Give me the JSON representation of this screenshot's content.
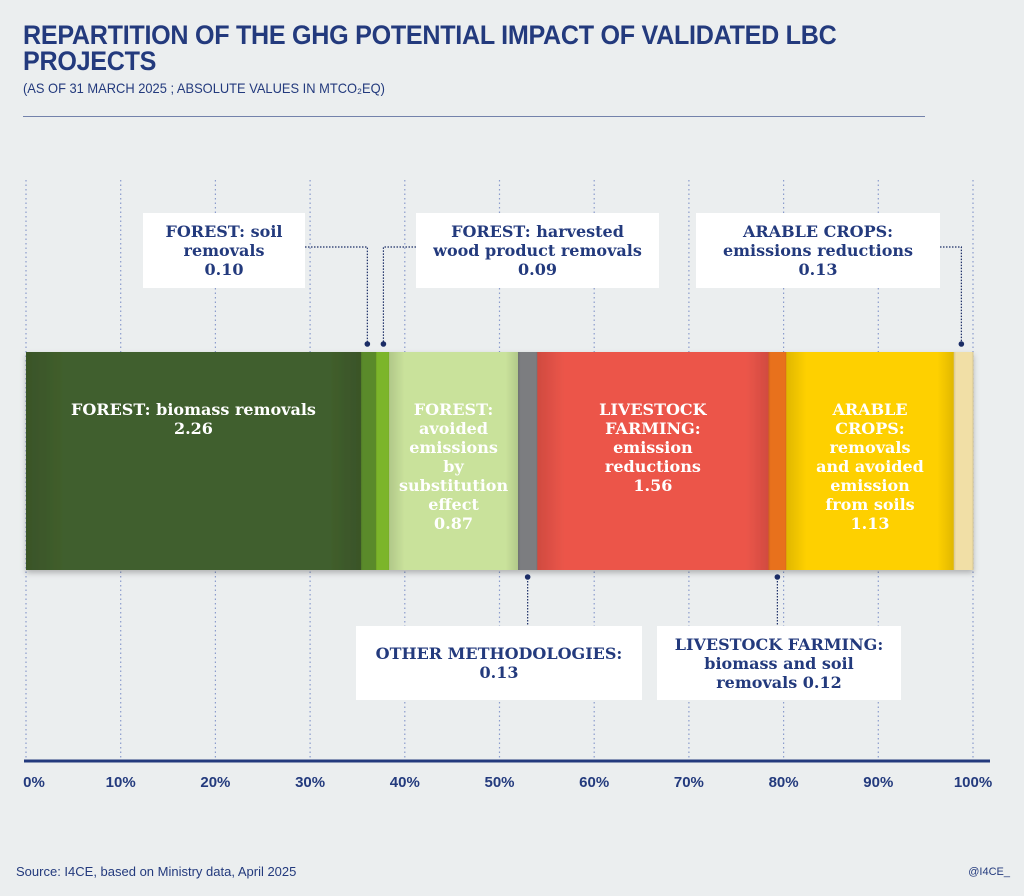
{
  "header": {
    "title": "REPARTITION OF THE GHG POTENTIAL IMPACT OF VALIDATED LBC PROJECTS",
    "subtitle": "(AS OF 31 MARCH 2025 ; ABSOLUTE VALUES IN MTCO₂EQ)"
  },
  "footer": {
    "source": "Source: I4CE, based on Ministry data, April 2025",
    "handle": "@I4CE_"
  },
  "chart_data": {
    "type": "bar",
    "orientation": "horizontal-stacked-100",
    "title": "REPARTITION OF THE GHG POTENTIAL IMPACT OF VALIDATED LBC PROJECTS",
    "subtitle": "(AS OF 31 MARCH 2025 ; ABSOLUTE VALUES IN MTCO₂EQ)",
    "unit": "MtCO2eq",
    "xlim": [
      0,
      100
    ],
    "x_ticks": [
      "0%",
      "10%",
      "20%",
      "30%",
      "40%",
      "50%",
      "60%",
      "70%",
      "80%",
      "90%",
      "100%"
    ],
    "grid": "vertical dotted",
    "segments": [
      {
        "name": "FOREST: biomass removals",
        "value": 2.26,
        "color": "#415f2d",
        "label_lines": [
          "FOREST: biomass removals",
          "2.26"
        ],
        "label_position": "inside"
      },
      {
        "name": "FOREST: soil removals",
        "value": 0.1,
        "color": "#5a8a2c",
        "label_lines": [
          "FOREST: soil",
          "removals",
          "0.10"
        ],
        "label_position": "callout-top"
      },
      {
        "name": "FOREST: harvested wood product removals",
        "value": 0.09,
        "color": "#7cb52a",
        "label_lines": [
          "FOREST: harvested",
          "wood product removals",
          "0.09"
        ],
        "label_position": "callout-top"
      },
      {
        "name": "FOREST: avoided emissions by substitution effect",
        "value": 0.87,
        "color": "#c9e29b",
        "label_lines": [
          "FOREST:",
          "avoided",
          "emissions",
          "by",
          "substitution",
          "effect",
          "0.87"
        ],
        "label_position": "inside"
      },
      {
        "name": "OTHER METHODOLOGIES",
        "value": 0.13,
        "color": "#7b7d80",
        "label_lines": [
          "OTHER METHODOLOGIES:",
          "0.13"
        ],
        "label_position": "callout-bottom"
      },
      {
        "name": "LIVESTOCK FARMING: emission reductions",
        "value": 1.56,
        "color": "#ec5549",
        "label_lines": [
          "LIVESTOCK",
          "FARMING:",
          "emission",
          "reductions",
          "1.56"
        ],
        "label_position": "inside"
      },
      {
        "name": "LIVESTOCK FARMING: biomass and soil removals",
        "value": 0.12,
        "color": "#e8711c",
        "label_lines": [
          "LIVESTOCK FARMING:",
          "biomass and soil",
          "removals 0.12"
        ],
        "label_position": "callout-bottom"
      },
      {
        "name": "ARABLE CROPS: removals and avoided emission from soils",
        "value": 1.13,
        "color": "#fed000",
        "label_lines": [
          "ARABLE",
          "CROPS:",
          "removals",
          "and avoided",
          "emission",
          "from soils",
          "1.13"
        ],
        "label_position": "inside"
      },
      {
        "name": "ARABLE CROPS: emissions reductions",
        "value": 0.13,
        "color": "#f1dfa6",
        "label_lines": [
          "ARABLE CROPS:",
          "emissions reductions",
          "0.13"
        ],
        "label_position": "callout-top"
      }
    ]
  }
}
